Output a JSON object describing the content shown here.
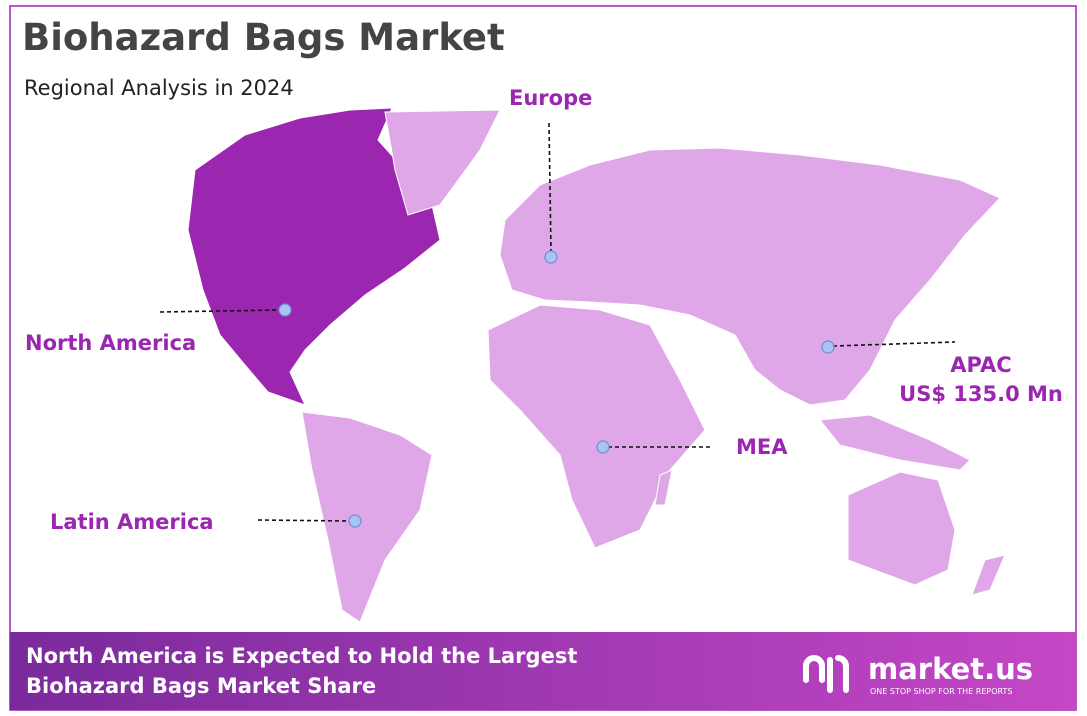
{
  "header": {
    "title": "Biohazard Bags Market",
    "subtitle": "Regional Analysis in 2024"
  },
  "regions": [
    {
      "label": "North America"
    },
    {
      "label": "Europe"
    },
    {
      "label": "APAC",
      "value_label": "US$ 135.0 Mn"
    },
    {
      "label": "MEA"
    },
    {
      "label": "Latin America"
    }
  ],
  "footer": {
    "headline_lines": [
      "North America is Expected to Hold the Largest",
      "Biohazard Bags Market Share"
    ],
    "brand": "market.us",
    "tagline": "ONE STOP SHOP FOR THE REPORTS"
  }
}
